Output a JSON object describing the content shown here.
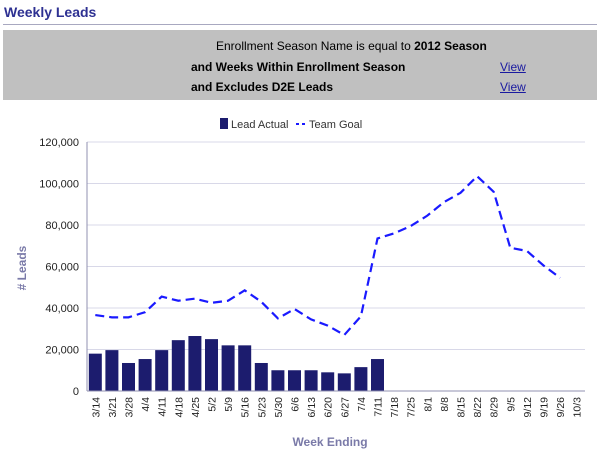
{
  "header": {
    "title": "Weekly Leads"
  },
  "filter": {
    "line1_prefix": "Enrollment Season Name is equal to ",
    "line1_value": "2012 Season",
    "line2": "and Weeks Within Enrollment Season",
    "line3": "and Excludes D2E Leads",
    "view_label": "View"
  },
  "chart_data": {
    "type": "bar+line",
    "title": "",
    "xlabel": "Week Ending",
    "ylabel": "# Leads",
    "ylim": [
      0,
      120000
    ],
    "yticks": [
      "0",
      "20,000",
      "40,000",
      "60,000",
      "80,000",
      "100,000",
      "120,000"
    ],
    "categories": [
      "3/14",
      "3/21",
      "3/28",
      "4/4",
      "4/11",
      "4/18",
      "4/25",
      "5/2",
      "5/9",
      "5/16",
      "5/23",
      "5/30",
      "6/6",
      "6/13",
      "6/20",
      "6/27",
      "7/4",
      "7/11",
      "7/18",
      "7/25",
      "8/1",
      "8/8",
      "8/15",
      "8/22",
      "8/29",
      "9/5",
      "9/12",
      "9/19",
      "9/26",
      "10/3"
    ],
    "legend_position": "top",
    "grid": true,
    "series": [
      {
        "name": "Lead Actual",
        "type": "bar",
        "color": "#1c1c6e",
        "values": [
          18000,
          19700,
          13500,
          15400,
          19700,
          24500,
          26500,
          25000,
          22000,
          22000,
          13500,
          10000,
          10000,
          10000,
          9000,
          8500,
          11500,
          15400,
          null,
          null,
          null,
          null,
          null,
          null,
          null,
          null,
          null,
          null,
          null,
          null
        ]
      },
      {
        "name": "Team Goal",
        "type": "line",
        "style": "dashed",
        "color": "#1a1aff",
        "values": [
          36600,
          35500,
          35500,
          38000,
          45500,
          43500,
          44500,
          42500,
          43500,
          48500,
          43000,
          35000,
          39500,
          34500,
          31500,
          27000,
          36000,
          73500,
          76000,
          79500,
          84500,
          91000,
          95500,
          103500,
          96000,
          69000,
          67500,
          60500,
          54500,
          null
        ]
      }
    ]
  }
}
